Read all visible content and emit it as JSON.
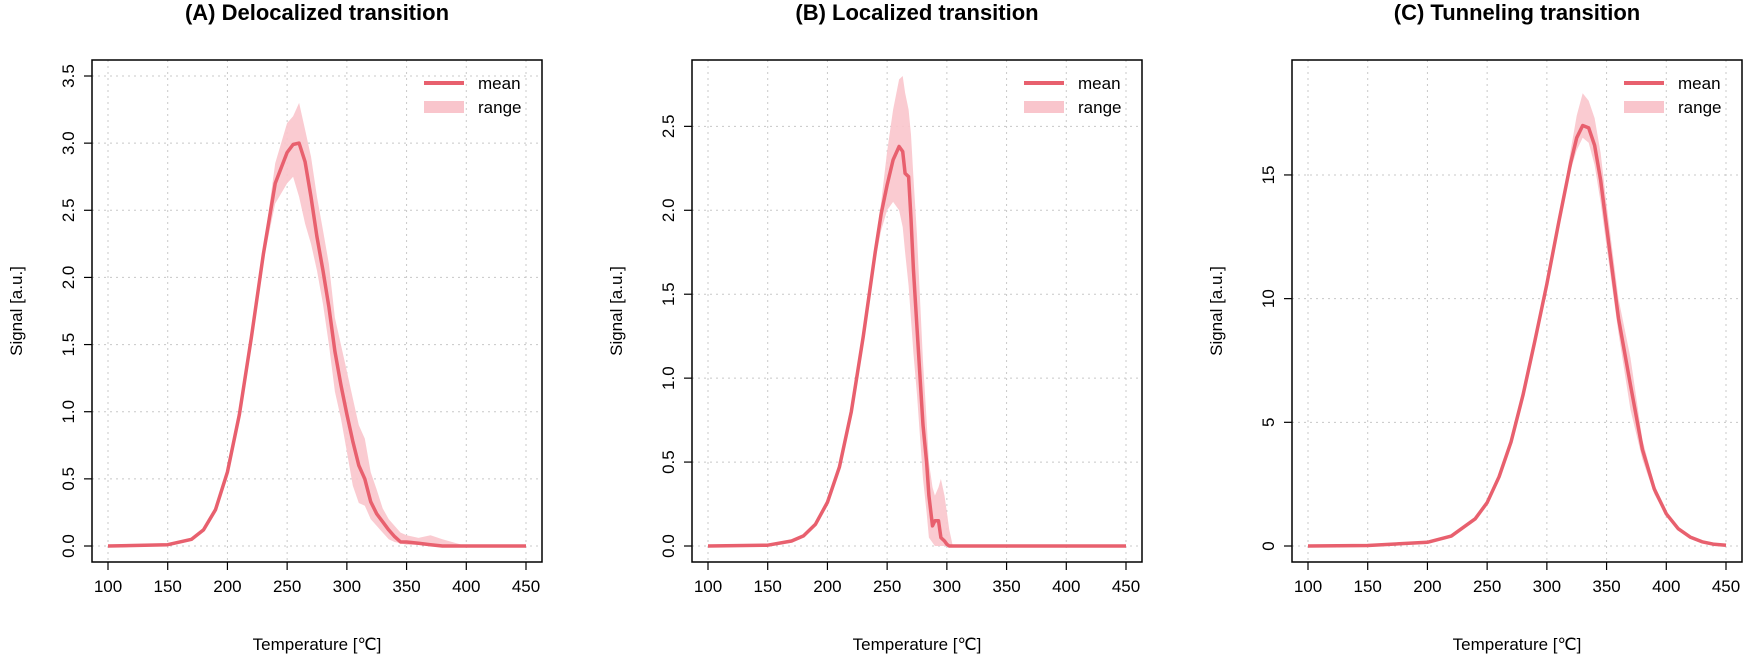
{
  "colors": {
    "mean": "#e8606e",
    "range": "#f9c5cc",
    "grid": "#c8c8c8",
    "axis": "#000000"
  },
  "chart_data": [
    {
      "type": "line",
      "title": "(A) Delocalized transition",
      "xlabel": "Temperature [℃]",
      "ylabel": "Signal [a.u.]",
      "xlim": [
        100,
        450
      ],
      "ylim": [
        0,
        3.5
      ],
      "xticks": [
        100,
        150,
        200,
        250,
        300,
        350,
        400,
        450
      ],
      "yticks": [
        0,
        0.5,
        1,
        1.5,
        2,
        2.5,
        3,
        3.5
      ],
      "yticklabels": [
        "0.0",
        "0.5",
        "1.0",
        "1.5",
        "2.0",
        "2.5",
        "3.0",
        "3.5"
      ],
      "grid": true,
      "legend": {
        "position": "top-right",
        "entries": [
          "mean",
          "range"
        ]
      },
      "series": [
        {
          "name": "mean",
          "x": [
            100,
            150,
            170,
            180,
            190,
            200,
            210,
            220,
            230,
            240,
            250,
            255,
            260,
            265,
            270,
            275,
            280,
            285,
            290,
            295,
            300,
            305,
            310,
            315,
            320,
            325,
            330,
            335,
            340,
            345,
            350,
            360,
            370,
            380,
            400,
            450
          ],
          "y": [
            0,
            0.01,
            0.05,
            0.12,
            0.27,
            0.55,
            0.98,
            1.55,
            2.17,
            2.7,
            2.93,
            2.99,
            3.0,
            2.86,
            2.6,
            2.3,
            2.05,
            1.78,
            1.45,
            1.2,
            0.98,
            0.78,
            0.6,
            0.5,
            0.33,
            0.24,
            0.18,
            0.12,
            0.07,
            0.03,
            0.03,
            0.02,
            0.01,
            0,
            0,
            0
          ]
        },
        {
          "name": "range",
          "x": [
            100,
            150,
            170,
            180,
            190,
            200,
            210,
            220,
            230,
            240,
            250,
            255,
            260,
            265,
            270,
            275,
            280,
            285,
            290,
            295,
            300,
            305,
            310,
            315,
            320,
            325,
            330,
            335,
            340,
            345,
            350,
            360,
            370,
            380,
            400,
            450
          ],
          "lower": [
            0,
            0.01,
            0.05,
            0.12,
            0.27,
            0.55,
            0.98,
            1.55,
            2.12,
            2.55,
            2.7,
            2.75,
            2.6,
            2.4,
            2.25,
            2.05,
            1.8,
            1.5,
            1.15,
            0.95,
            0.7,
            0.45,
            0.32,
            0.3,
            0.2,
            0.15,
            0.1,
            0.05,
            0.03,
            0.02,
            0.01,
            0.01,
            0,
            0,
            0,
            0
          ],
          "upper": [
            0,
            0.01,
            0.05,
            0.12,
            0.27,
            0.55,
            0.98,
            1.55,
            2.2,
            2.85,
            3.15,
            3.2,
            3.3,
            3.1,
            2.9,
            2.6,
            2.35,
            2.1,
            1.7,
            1.5,
            1.3,
            1.1,
            0.9,
            0.8,
            0.55,
            0.42,
            0.28,
            0.2,
            0.15,
            0.1,
            0.08,
            0.06,
            0.08,
            0.05,
            0,
            0
          ]
        }
      ]
    },
    {
      "type": "line",
      "title": "(B) Localized transition",
      "xlabel": "Temperature [℃]",
      "ylabel": "Signal [a.u.]",
      "xlim": [
        100,
        450
      ],
      "ylim": [
        0,
        2.8
      ],
      "xticks": [
        100,
        150,
        200,
        250,
        300,
        350,
        400,
        450
      ],
      "yticks": [
        0,
        0.5,
        1,
        1.5,
        2,
        2.5
      ],
      "yticklabels": [
        "0.0",
        "0.5",
        "1.0",
        "1.5",
        "2.0",
        "2.5"
      ],
      "grid": true,
      "legend": {
        "position": "top-right",
        "entries": [
          "mean",
          "range"
        ]
      },
      "series": [
        {
          "name": "mean",
          "x": [
            100,
            150,
            170,
            180,
            190,
            200,
            210,
            220,
            230,
            240,
            245,
            250,
            255,
            260,
            263,
            265,
            268,
            270,
            272,
            275,
            278,
            280,
            283,
            285,
            288,
            290,
            293,
            295,
            298,
            300,
            302,
            305,
            350,
            400,
            450
          ],
          "y": [
            0,
            0.005,
            0.03,
            0.06,
            0.13,
            0.26,
            0.47,
            0.8,
            1.25,
            1.75,
            1.98,
            2.15,
            2.3,
            2.38,
            2.35,
            2.22,
            2.2,
            1.95,
            1.65,
            1.3,
            0.95,
            0.72,
            0.5,
            0.3,
            0.12,
            0.15,
            0.15,
            0.05,
            0.03,
            0.01,
            0,
            0,
            0,
            0,
            0
          ]
        },
        {
          "name": "range",
          "x": [
            100,
            150,
            170,
            180,
            190,
            200,
            210,
            220,
            230,
            240,
            245,
            250,
            255,
            260,
            263,
            265,
            268,
            270,
            272,
            275,
            278,
            280,
            283,
            285,
            288,
            290,
            293,
            295,
            298,
            300,
            302,
            305,
            350,
            400,
            450
          ],
          "lower": [
            0,
            0.005,
            0.03,
            0.06,
            0.13,
            0.26,
            0.47,
            0.8,
            1.25,
            1.7,
            1.88,
            2.0,
            2.05,
            2.0,
            1.9,
            1.75,
            1.55,
            1.35,
            1.15,
            0.9,
            0.6,
            0.4,
            0.2,
            0.05,
            0.02,
            0,
            0,
            0,
            0,
            0,
            0,
            0,
            0,
            0,
            0
          ],
          "upper": [
            0,
            0.005,
            0.03,
            0.06,
            0.13,
            0.26,
            0.47,
            0.8,
            1.25,
            1.8,
            2.05,
            2.35,
            2.6,
            2.78,
            2.8,
            2.7,
            2.6,
            2.45,
            2.2,
            1.85,
            1.4,
            1.1,
            0.75,
            0.5,
            0.35,
            0.3,
            0.35,
            0.4,
            0.3,
            0.2,
            0.1,
            0,
            0,
            0,
            0
          ]
        }
      ]
    },
    {
      "type": "line",
      "title": "(C) Tunneling transition",
      "xlabel": "Temperature [℃]",
      "ylabel": "Signal [a.u.]",
      "xlim": [
        100,
        450
      ],
      "ylim": [
        0,
        19
      ],
      "xticks": [
        100,
        150,
        200,
        250,
        300,
        350,
        400,
        450
      ],
      "yticks": [
        0,
        5,
        10,
        15
      ],
      "yticklabels": [
        "0",
        "5",
        "10",
        "15"
      ],
      "grid": true,
      "legend": {
        "position": "top-right",
        "entries": [
          "mean",
          "range"
        ]
      },
      "series": [
        {
          "name": "mean",
          "x": [
            100,
            150,
            200,
            220,
            240,
            250,
            260,
            270,
            280,
            290,
            300,
            310,
            320,
            325,
            330,
            335,
            340,
            345,
            350,
            360,
            370,
            380,
            390,
            400,
            410,
            420,
            430,
            440,
            450
          ],
          "y": [
            0,
            0.02,
            0.15,
            0.4,
            1.1,
            1.75,
            2.8,
            4.2,
            6.1,
            8.3,
            10.6,
            13.1,
            15.5,
            16.5,
            17.0,
            16.9,
            16.2,
            14.8,
            12.9,
            9.2,
            6.5,
            3.9,
            2.3,
            1.3,
            0.7,
            0.36,
            0.17,
            0.07,
            0.03
          ]
        },
        {
          "name": "range",
          "x": [
            100,
            150,
            200,
            220,
            240,
            250,
            260,
            270,
            280,
            290,
            300,
            310,
            320,
            325,
            330,
            335,
            340,
            345,
            350,
            360,
            370,
            380,
            390,
            400,
            410,
            420,
            430,
            440,
            450
          ],
          "lower": [
            0,
            0.02,
            0.15,
            0.4,
            1.1,
            1.75,
            2.8,
            4.2,
            6.1,
            8.3,
            10.6,
            13.1,
            15.2,
            16.0,
            16.5,
            16.3,
            15.4,
            13.9,
            12.1,
            8.6,
            5.5,
            3.5,
            2.1,
            1.2,
            0.65,
            0.33,
            0.15,
            0.06,
            0.02
          ],
          "upper": [
            0,
            0.02,
            0.15,
            0.4,
            1.1,
            1.75,
            2.8,
            4.2,
            6.1,
            8.3,
            10.6,
            13.1,
            16.0,
            17.4,
            18.3,
            18.0,
            17.3,
            15.9,
            13.8,
            10.0,
            7.6,
            4.3,
            2.5,
            1.4,
            0.75,
            0.4,
            0.19,
            0.08,
            0.04
          ]
        }
      ]
    }
  ]
}
